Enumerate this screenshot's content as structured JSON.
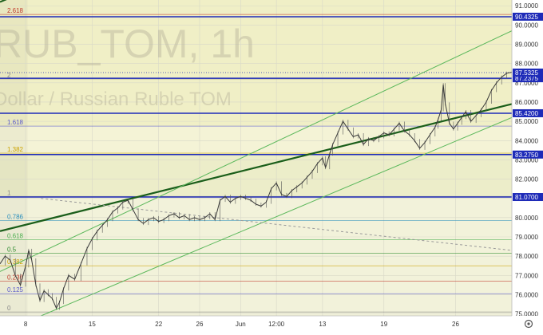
{
  "chart_data": {
    "type": "line",
    "watermark_symbol": "RUB_TOM, 1h",
    "watermark_description": "Dollar / Russian Ruble TOM",
    "y_axis": {
      "range": [
        74.9,
        91.3
      ],
      "ticks": [
        "91.0000",
        "90.0000",
        "89.0000",
        "88.0000",
        "87.0000",
        "86.0000",
        "85.0000",
        "84.0000",
        "83.0000",
        "82.0000",
        "81.0000",
        "80.0000",
        "79.0000",
        "78.0000",
        "77.0000",
        "76.0000",
        "75.0000"
      ],
      "tick_values": [
        91,
        90,
        89,
        88,
        87,
        86,
        85,
        84,
        83,
        82,
        81,
        80,
        79,
        78,
        77,
        76,
        75
      ]
    },
    "x_axis": {
      "ticks": [
        "8",
        "15",
        "22",
        "26",
        "Jun",
        "12:00",
        "13",
        "19",
        "26"
      ],
      "tick_positions": [
        0.0,
        6.5,
        13.0,
        17.0,
        21.0,
        24.5,
        29.0,
        35.0,
        42.0
      ],
      "range": [
        -2.5,
        47.5
      ]
    },
    "horizontal_levels": [
      {
        "value": 90.4325,
        "label": "90.4325",
        "color": "#1e2bb8"
      },
      {
        "value": 87.2375,
        "label": "87.2375",
        "color": "#1e2bb8"
      },
      {
        "value": 85.42,
        "label": "85.4200",
        "color": "#1e2bb8"
      },
      {
        "value": 83.275,
        "label": "83.2750",
        "color": "#1e2bb8"
      },
      {
        "value": 81.07,
        "label": "81.0700",
        "color": "#1e2bb8"
      }
    ],
    "current_price": {
      "value": 87.5325,
      "label": "87.5325",
      "color": "#1e2bb8"
    },
    "fib_levels": [
      {
        "label": "0",
        "value": 75.1,
        "color": "#888888"
      },
      {
        "label": "0.125",
        "value": 76.05,
        "color": "#5a5acc"
      },
      {
        "label": "0.236",
        "value": 76.7,
        "color": "#c0392b"
      },
      {
        "label": "0.382",
        "value": 77.5,
        "color": "#cca300"
      },
      {
        "label": "0.5",
        "value": 78.15,
        "color": "#2e8b2e"
      },
      {
        "label": "0.618",
        "value": 78.85,
        "color": "#4caf50"
      },
      {
        "label": "0.786",
        "value": 79.85,
        "color": "#2a8fbd"
      },
      {
        "label": "1",
        "value": 81.1,
        "color": "#888888"
      },
      {
        "label": "1.382",
        "value": 83.35,
        "color": "#cca300"
      },
      {
        "label": "1.618",
        "value": 84.75,
        "color": "#5a5acc"
      },
      {
        "label": "2",
        "value": 87.2,
        "color": "#888888"
      },
      {
        "label": "2.618",
        "value": 90.55,
        "color": "#c0392b"
      }
    ],
    "trendlines": [
      {
        "name": "main-trend",
        "color": "#1a5e1a",
        "p1": [
          -2.5,
          79.3
        ],
        "p2": [
          47.5,
          85.9
        ],
        "width": 2.2
      },
      {
        "name": "channel-upper",
        "color": "#5cb85c",
        "p1": [
          -2.5,
          77.2
        ],
        "p2": [
          47.5,
          89.7
        ],
        "width": 1
      },
      {
        "name": "channel-lower",
        "color": "#5cb85c",
        "p1": [
          1.5,
          74.9
        ],
        "p2": [
          47.5,
          85.2
        ],
        "width": 1
      },
      {
        "name": "dotted-down",
        "color": "#999999",
        "p1": [
          1.5,
          81.0
        ],
        "p2": [
          47.5,
          78.3
        ],
        "width": 1,
        "dash": "3,3"
      },
      {
        "name": "top-dark",
        "color": "#1a5e1a",
        "p1": [
          -2.5,
          91.2
        ],
        "p2": [
          0.8,
          91.9
        ],
        "width": 2
      }
    ],
    "price_series": [
      {
        "x": -2.5,
        "y": 77.6
      },
      {
        "x": -2.0,
        "y": 78.0
      },
      {
        "x": -1.5,
        "y": 77.8
      },
      {
        "x": -1.0,
        "y": 77.0
      },
      {
        "x": -0.5,
        "y": 76.5
      },
      {
        "x": 0.0,
        "y": 77.5
      },
      {
        "x": 0.3,
        "y": 78.3
      },
      {
        "x": 0.6,
        "y": 77.8
      },
      {
        "x": 1.0,
        "y": 76.5
      },
      {
        "x": 1.4,
        "y": 75.7
      },
      {
        "x": 1.8,
        "y": 76.2
      },
      {
        "x": 2.2,
        "y": 76.0
      },
      {
        "x": 2.6,
        "y": 75.8
      },
      {
        "x": 3.0,
        "y": 75.3
      },
      {
        "x": 3.3,
        "y": 75.6
      },
      {
        "x": 3.7,
        "y": 76.3
      },
      {
        "x": 4.2,
        "y": 77.0
      },
      {
        "x": 4.8,
        "y": 76.8
      },
      {
        "x": 5.4,
        "y": 77.6
      },
      {
        "x": 6.0,
        "y": 78.4
      },
      {
        "x": 6.5,
        "y": 78.9
      },
      {
        "x": 7.0,
        "y": 79.3
      },
      {
        "x": 7.5,
        "y": 79.6
      },
      {
        "x": 8.0,
        "y": 79.9
      },
      {
        "x": 8.5,
        "y": 80.3
      },
      {
        "x": 9.0,
        "y": 80.5
      },
      {
        "x": 9.5,
        "y": 80.8
      },
      {
        "x": 10.0,
        "y": 80.9
      },
      {
        "x": 10.5,
        "y": 80.4
      },
      {
        "x": 11.0,
        "y": 79.9
      },
      {
        "x": 11.5,
        "y": 79.7
      },
      {
        "x": 12.0,
        "y": 79.9
      },
      {
        "x": 12.5,
        "y": 80.0
      },
      {
        "x": 13.0,
        "y": 79.8
      },
      {
        "x": 13.5,
        "y": 79.9
      },
      {
        "x": 14.0,
        "y": 80.1
      },
      {
        "x": 14.5,
        "y": 80.2
      },
      {
        "x": 15.0,
        "y": 80.0
      },
      {
        "x": 15.5,
        "y": 80.1
      },
      {
        "x": 16.0,
        "y": 79.9
      },
      {
        "x": 16.5,
        "y": 80.0
      },
      {
        "x": 17.0,
        "y": 79.9
      },
      {
        "x": 17.5,
        "y": 80.0
      },
      {
        "x": 18.0,
        "y": 80.2
      },
      {
        "x": 18.5,
        "y": 79.9
      },
      {
        "x": 19.0,
        "y": 80.9
      },
      {
        "x": 19.5,
        "y": 81.1
      },
      {
        "x": 20.0,
        "y": 80.8
      },
      {
        "x": 20.5,
        "y": 81.0
      },
      {
        "x": 21.0,
        "y": 81.1
      },
      {
        "x": 21.5,
        "y": 81.0
      },
      {
        "x": 22.0,
        "y": 80.9
      },
      {
        "x": 22.5,
        "y": 80.7
      },
      {
        "x": 23.0,
        "y": 80.6
      },
      {
        "x": 23.5,
        "y": 80.8
      },
      {
        "x": 24.0,
        "y": 81.5
      },
      {
        "x": 24.5,
        "y": 81.8
      },
      {
        "x": 25.0,
        "y": 81.2
      },
      {
        "x": 25.5,
        "y": 81.1
      },
      {
        "x": 26.0,
        "y": 81.4
      },
      {
        "x": 26.5,
        "y": 81.6
      },
      {
        "x": 27.0,
        "y": 81.8
      },
      {
        "x": 27.5,
        "y": 82.1
      },
      {
        "x": 28.0,
        "y": 82.4
      },
      {
        "x": 28.5,
        "y": 82.8
      },
      {
        "x": 29.0,
        "y": 83.1
      },
      {
        "x": 29.3,
        "y": 82.6
      },
      {
        "x": 29.7,
        "y": 83.3
      },
      {
        "x": 30.0,
        "y": 83.8
      },
      {
        "x": 30.5,
        "y": 84.4
      },
      {
        "x": 31.0,
        "y": 85.0
      },
      {
        "x": 31.5,
        "y": 84.6
      },
      {
        "x": 32.0,
        "y": 84.2
      },
      {
        "x": 32.5,
        "y": 84.3
      },
      {
        "x": 33.0,
        "y": 83.8
      },
      {
        "x": 33.5,
        "y": 84.1
      },
      {
        "x": 34.0,
        "y": 84.0
      },
      {
        "x": 34.5,
        "y": 84.2
      },
      {
        "x": 35.0,
        "y": 84.4
      },
      {
        "x": 35.5,
        "y": 84.3
      },
      {
        "x": 36.0,
        "y": 84.6
      },
      {
        "x": 36.5,
        "y": 84.9
      },
      {
        "x": 37.0,
        "y": 84.5
      },
      {
        "x": 37.5,
        "y": 84.3
      },
      {
        "x": 38.0,
        "y": 84.0
      },
      {
        "x": 38.5,
        "y": 83.6
      },
      {
        "x": 39.0,
        "y": 83.9
      },
      {
        "x": 39.5,
        "y": 84.3
      },
      {
        "x": 40.0,
        "y": 84.7
      },
      {
        "x": 40.3,
        "y": 85.1
      },
      {
        "x": 40.6,
        "y": 85.6
      },
      {
        "x": 40.8,
        "y": 86.9
      },
      {
        "x": 41.0,
        "y": 85.9
      },
      {
        "x": 41.4,
        "y": 84.9
      },
      {
        "x": 41.8,
        "y": 84.6
      },
      {
        "x": 42.2,
        "y": 84.9
      },
      {
        "x": 42.6,
        "y": 85.2
      },
      {
        "x": 43.0,
        "y": 85.5
      },
      {
        "x": 43.5,
        "y": 85.0
      },
      {
        "x": 44.0,
        "y": 85.3
      },
      {
        "x": 44.5,
        "y": 85.6
      },
      {
        "x": 45.0,
        "y": 86.0
      },
      {
        "x": 45.5,
        "y": 86.6
      },
      {
        "x": 46.0,
        "y": 87.0
      },
      {
        "x": 46.5,
        "y": 87.3
      },
      {
        "x": 47.0,
        "y": 87.5
      },
      {
        "x": 47.5,
        "y": 87.55
      }
    ],
    "grid": true,
    "background_zones": [
      {
        "from": 84.75,
        "to": 91.3,
        "color": "#f0efc6"
      },
      {
        "from": 83.35,
        "to": 84.75,
        "color": "#f4f3d6"
      },
      {
        "from": 81.1,
        "to": 83.35,
        "color": "#ecedc9"
      },
      {
        "from": 74.9,
        "to": 81.1,
        "color": "#f2f2da"
      }
    ]
  },
  "toolbar": {
    "settings_icon": "gear-icon"
  }
}
